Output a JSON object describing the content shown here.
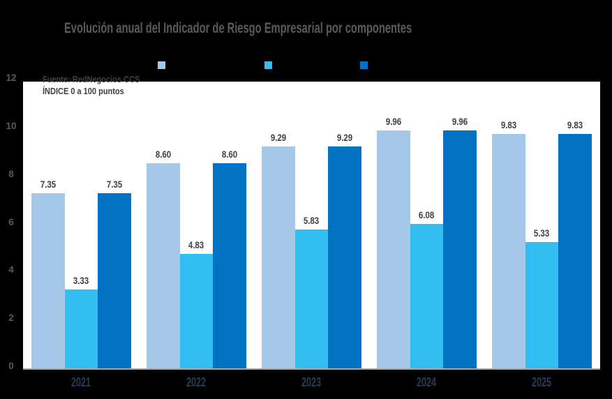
{
  "title": "Evolución anual del Indicador de Riesgo Empresarial por componentes",
  "notes": {
    "source": "Fuente: RedNegocios CCS",
    "scale": "ÍNDICE 0 a 100  puntos"
  },
  "colors": {
    "background": "#000000",
    "plot_background": "#FFFFFF",
    "title_text": "#5A5A5A",
    "note_text": "#404040",
    "value_label_text": "#404040",
    "y_tick_text": "#595959",
    "year_label_text": "#2B3D55",
    "baseline": "#A6A6A6",
    "series_light_blue": "#A5C8E9",
    "series_cyan": "#33BEF2",
    "series_dark_blue": "#0272C2"
  },
  "legend": {
    "items": [
      {
        "swatch": "light-blue-square",
        "color": "#A5C8E9"
      },
      {
        "swatch": "cyan-square",
        "color": "#33BEF2"
      },
      {
        "swatch": "dark-blue-square",
        "color": "#0272C2"
      }
    ]
  },
  "chart_data": {
    "type": "bar",
    "title": "Evolución anual del Indicador de Riesgo Empresarial por componentes",
    "categories": [
      "2021",
      "2022",
      "2023",
      "2024",
      "2025"
    ],
    "series": [
      {
        "name": "light-blue",
        "color": "#A5C8E9",
        "values": [
          7.35,
          8.6,
          9.29,
          9.96,
          9.83
        ]
      },
      {
        "name": "cyan",
        "color": "#33BEF2",
        "values": [
          3.33,
          4.83,
          5.83,
          6.08,
          5.33
        ]
      },
      {
        "name": "dark-blue",
        "color": "#0272C2",
        "values": [
          7.35,
          8.6,
          9.29,
          9.96,
          9.83
        ]
      }
    ],
    "value_labels_decimals": 2,
    "ylim": [
      0,
      12
    ],
    "yticks": [
      0,
      2,
      4,
      6,
      8,
      10,
      12
    ],
    "grid": false,
    "legend_position": "top"
  }
}
